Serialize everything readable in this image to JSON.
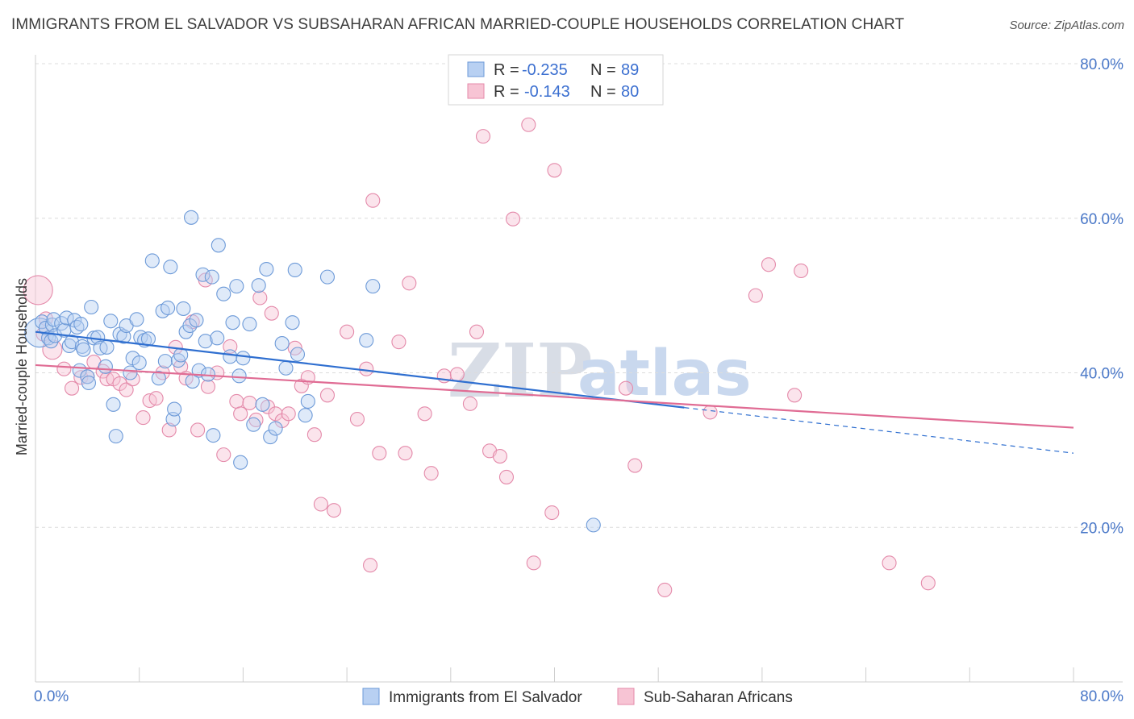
{
  "title": "IMMIGRANTS FROM EL SALVADOR VS SUBSAHARAN AFRICAN MARRIED-COUPLE HOUSEHOLDS CORRELATION CHART",
  "source": "Source: ZipAtlas.com",
  "watermark": {
    "zip": "ZIP",
    "atlas": "atlas"
  },
  "colors": {
    "blue_fill": "#b8d0f2",
    "blue_stroke": "#6d9ad8",
    "blue_line": "#2f6fd0",
    "pink_fill": "#f7c4d4",
    "pink_stroke": "#e48aaa",
    "pink_line": "#e06c94",
    "axis_text": "#4a78c8"
  },
  "legend": {
    "items": [
      {
        "r_label": "R =",
        "r_value": "-0.235",
        "n_label": "N =",
        "n_value": "89"
      },
      {
        "r_label": "R =",
        "r_value": "-0.143",
        "n_label": "N =",
        "n_value": "80"
      }
    ]
  },
  "bottom_legend": [
    "Immigrants from El Salvador",
    "Sub-Saharan Africans"
  ],
  "chart_data": {
    "type": "scatter",
    "title": "IMMIGRANTS FROM EL SALVADOR VS SUBSAHARAN AFRICAN MARRIED-COUPLE HOUSEHOLDS CORRELATION CHART",
    "xlabel": "",
    "ylabel": "Married-couple Households",
    "xlim": [
      0,
      80
    ],
    "ylim": [
      0,
      80
    ],
    "x_tick_labels": [
      "0.0%",
      "80.0%"
    ],
    "y_ticks": [
      20,
      40,
      60,
      80
    ],
    "y_tick_labels": [
      "20.0%",
      "40.0%",
      "60.0%",
      "80.0%"
    ],
    "series": [
      {
        "name": "Immigrants from El Salvador",
        "color": "#6d9ad8",
        "trend": {
          "x0": 0,
          "y0": 45.3,
          "x1": 50,
          "y1": 35.5,
          "dashed_to_x": 80,
          "dashed_to_y": 29.6
        },
        "points": [
          [
            0.3,
            45.2,
            3
          ],
          [
            0.5,
            46.6,
            1
          ],
          [
            0.8,
            45.8,
            1
          ],
          [
            1.0,
            44.5,
            1
          ],
          [
            1.2,
            44.1,
            1
          ],
          [
            1.3,
            46.2,
            1
          ],
          [
            1.4,
            46.9,
            1
          ],
          [
            1.5,
            44.8,
            1
          ],
          [
            2.0,
            46.4,
            1
          ],
          [
            2.2,
            45.5,
            1
          ],
          [
            2.4,
            47.1,
            1
          ],
          [
            2.6,
            43.5,
            1
          ],
          [
            2.8,
            44.0,
            1
          ],
          [
            3.0,
            46.8,
            1
          ],
          [
            3.2,
            45.9,
            1
          ],
          [
            3.4,
            40.3,
            1
          ],
          [
            3.5,
            46.3,
            1
          ],
          [
            3.6,
            43.4,
            1
          ],
          [
            3.7,
            43.0,
            1
          ],
          [
            4.0,
            39.5,
            1
          ],
          [
            4.1,
            38.7,
            1
          ],
          [
            4.3,
            48.5,
            1
          ],
          [
            4.5,
            44.5,
            1
          ],
          [
            4.8,
            44.6,
            1
          ],
          [
            5.0,
            43.2,
            1
          ],
          [
            5.4,
            40.8,
            1
          ],
          [
            5.5,
            43.3,
            1
          ],
          [
            5.8,
            46.7,
            1
          ],
          [
            6.0,
            35.9,
            1
          ],
          [
            6.2,
            31.8,
            1
          ],
          [
            6.5,
            45.0,
            1
          ],
          [
            6.8,
            44.7,
            1
          ],
          [
            7.0,
            46.1,
            1
          ],
          [
            7.3,
            40.0,
            1
          ],
          [
            7.5,
            41.9,
            1
          ],
          [
            7.8,
            46.9,
            1
          ],
          [
            8.0,
            41.3,
            1
          ],
          [
            8.1,
            44.6,
            1
          ],
          [
            8.4,
            44.2,
            1
          ],
          [
            8.7,
            44.4,
            1
          ],
          [
            9.0,
            54.5,
            1
          ],
          [
            9.5,
            39.3,
            1
          ],
          [
            9.8,
            48.0,
            1
          ],
          [
            10.0,
            41.5,
            1
          ],
          [
            10.2,
            48.4,
            1
          ],
          [
            10.4,
            53.7,
            1
          ],
          [
            10.6,
            34.0,
            1
          ],
          [
            10.7,
            35.3,
            1
          ],
          [
            11.0,
            41.6,
            1
          ],
          [
            11.2,
            42.3,
            1
          ],
          [
            11.4,
            48.3,
            1
          ],
          [
            11.6,
            45.3,
            1
          ],
          [
            11.9,
            46.1,
            1
          ],
          [
            12.0,
            60.1,
            1
          ],
          [
            12.1,
            38.9,
            1
          ],
          [
            12.4,
            46.8,
            1
          ],
          [
            12.6,
            40.3,
            1
          ],
          [
            12.9,
            52.7,
            1
          ],
          [
            13.1,
            44.1,
            1
          ],
          [
            13.3,
            39.8,
            1
          ],
          [
            13.6,
            52.4,
            1
          ],
          [
            13.7,
            31.9,
            1
          ],
          [
            14.0,
            44.5,
            1
          ],
          [
            14.1,
            56.5,
            1
          ],
          [
            14.5,
            50.2,
            1
          ],
          [
            15.0,
            42.1,
            1
          ],
          [
            15.2,
            46.5,
            1
          ],
          [
            15.5,
            51.2,
            1
          ],
          [
            15.7,
            39.6,
            1
          ],
          [
            15.8,
            28.4,
            1
          ],
          [
            16.0,
            41.9,
            1
          ],
          [
            16.5,
            46.3,
            1
          ],
          [
            16.8,
            33.3,
            1
          ],
          [
            17.2,
            51.3,
            1
          ],
          [
            17.5,
            35.9,
            1
          ],
          [
            17.8,
            53.4,
            1
          ],
          [
            18.1,
            31.7,
            1
          ],
          [
            18.5,
            32.8,
            1
          ],
          [
            19.0,
            43.8,
            1
          ],
          [
            19.3,
            40.6,
            1
          ],
          [
            19.8,
            46.5,
            1
          ],
          [
            20.0,
            53.3,
            1
          ],
          [
            20.2,
            42.4,
            1
          ],
          [
            20.8,
            34.5,
            1
          ],
          [
            21.0,
            36.3,
            1
          ],
          [
            22.5,
            52.4,
            1
          ],
          [
            25.5,
            44.2,
            1
          ],
          [
            26.0,
            51.2,
            1
          ],
          [
            43.0,
            20.3,
            1
          ]
        ]
      },
      {
        "name": "Sub-Saharan Africans",
        "color": "#e48aaa",
        "trend": {
          "x0": 0,
          "y0": 41.0,
          "x1": 80,
          "y1": 32.9
        },
        "points": [
          [
            0.2,
            50.7,
            3
          ],
          [
            0.6,
            45.0,
            1
          ],
          [
            0.8,
            47.0,
            1
          ],
          [
            1.3,
            43.0,
            2
          ],
          [
            2.2,
            40.5,
            1
          ],
          [
            2.8,
            38.0,
            1
          ],
          [
            3.5,
            39.4,
            1
          ],
          [
            4.0,
            39.5,
            1
          ],
          [
            4.5,
            41.4,
            1
          ],
          [
            5.2,
            40.2,
            1
          ],
          [
            5.5,
            39.2,
            1
          ],
          [
            6.0,
            39.2,
            1
          ],
          [
            6.5,
            38.6,
            1
          ],
          [
            7.0,
            37.8,
            1
          ],
          [
            7.5,
            39.2,
            1
          ],
          [
            8.3,
            34.2,
            1
          ],
          [
            8.8,
            36.4,
            1
          ],
          [
            9.3,
            36.7,
            1
          ],
          [
            9.8,
            40.0,
            1
          ],
          [
            10.3,
            32.6,
            1
          ],
          [
            10.8,
            43.3,
            1
          ],
          [
            11.2,
            40.8,
            1
          ],
          [
            11.6,
            39.3,
            1
          ],
          [
            12.1,
            46.6,
            1
          ],
          [
            12.5,
            32.6,
            1
          ],
          [
            13.1,
            52.0,
            1
          ],
          [
            13.3,
            38.2,
            1
          ],
          [
            14.0,
            40.0,
            1
          ],
          [
            14.5,
            29.4,
            1
          ],
          [
            15.0,
            43.4,
            1
          ],
          [
            15.5,
            36.3,
            1
          ],
          [
            15.8,
            34.7,
            1
          ],
          [
            16.5,
            36.1,
            1
          ],
          [
            17.0,
            33.9,
            1
          ],
          [
            17.3,
            49.7,
            1
          ],
          [
            17.9,
            35.6,
            1
          ],
          [
            18.2,
            47.7,
            1
          ],
          [
            18.5,
            34.7,
            1
          ],
          [
            19.0,
            33.8,
            1
          ],
          [
            19.5,
            34.7,
            1
          ],
          [
            20.0,
            43.2,
            1
          ],
          [
            20.5,
            38.3,
            1
          ],
          [
            21.0,
            39.4,
            1
          ],
          [
            21.5,
            32.0,
            1
          ],
          [
            22.0,
            23.0,
            1
          ],
          [
            22.5,
            37.1,
            1
          ],
          [
            23.0,
            22.2,
            1
          ],
          [
            24.0,
            45.3,
            1
          ],
          [
            24.8,
            34.0,
            1
          ],
          [
            25.5,
            40.5,
            1
          ],
          [
            25.8,
            15.1,
            1
          ],
          [
            26.0,
            62.3,
            1
          ],
          [
            26.5,
            29.6,
            1
          ],
          [
            28.0,
            44.0,
            1
          ],
          [
            28.5,
            29.6,
            1
          ],
          [
            28.8,
            51.6,
            1
          ],
          [
            30.0,
            34.7,
            1
          ],
          [
            30.5,
            27.0,
            1
          ],
          [
            31.5,
            39.6,
            1
          ],
          [
            32.5,
            39.8,
            1
          ],
          [
            33.5,
            36.0,
            1
          ],
          [
            34.0,
            45.3,
            1
          ],
          [
            34.5,
            70.6,
            1
          ],
          [
            35.0,
            29.9,
            1
          ],
          [
            35.8,
            29.2,
            1
          ],
          [
            36.3,
            26.5,
            1
          ],
          [
            36.8,
            59.9,
            1
          ],
          [
            38.0,
            72.1,
            1
          ],
          [
            38.4,
            15.4,
            1
          ],
          [
            39.8,
            21.9,
            1
          ],
          [
            40.0,
            66.2,
            1
          ],
          [
            46.2,
            28.0,
            1
          ],
          [
            45.5,
            38.0,
            1
          ],
          [
            48.5,
            11.9,
            1
          ],
          [
            52.0,
            34.9,
            1
          ],
          [
            55.5,
            50.0,
            1
          ],
          [
            56.5,
            54.0,
            1
          ],
          [
            58.5,
            37.1,
            1
          ],
          [
            59.0,
            53.2,
            1
          ],
          [
            65.8,
            15.4,
            1
          ],
          [
            68.8,
            12.8,
            1
          ]
        ]
      }
    ]
  }
}
